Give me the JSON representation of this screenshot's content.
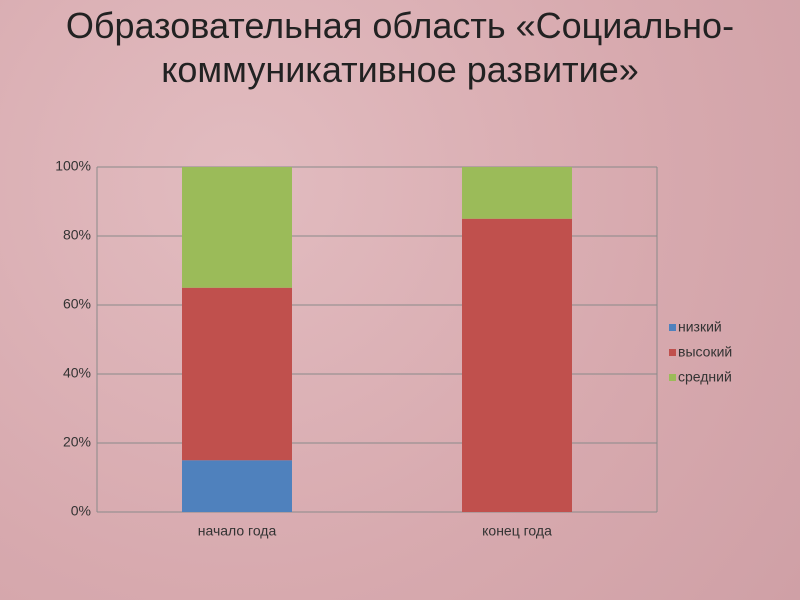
{
  "chart_data": {
    "type": "stacked-bar-100",
    "title": "Образовательная область «Социально-коммуникативное развитие»",
    "categories": [
      "начало года",
      "конец года"
    ],
    "series": [
      {
        "name": "низкий",
        "color": "#4f81bd",
        "values": [
          15,
          0
        ]
      },
      {
        "name": "высокий",
        "color": "#c0504d",
        "values": [
          50,
          85
        ]
      },
      {
        "name": "средний",
        "color": "#9bbb59",
        "values": [
          35,
          15
        ]
      }
    ],
    "ylim": [
      0,
      100
    ],
    "yticks": [
      {
        "value": 0,
        "label": "0%"
      },
      {
        "value": 20,
        "label": "20%"
      },
      {
        "value": 40,
        "label": "40%"
      },
      {
        "value": 60,
        "label": "60%"
      },
      {
        "value": 80,
        "label": "80%"
      },
      {
        "value": 100,
        "label": "100%"
      }
    ],
    "grid": true,
    "legend": "right"
  }
}
